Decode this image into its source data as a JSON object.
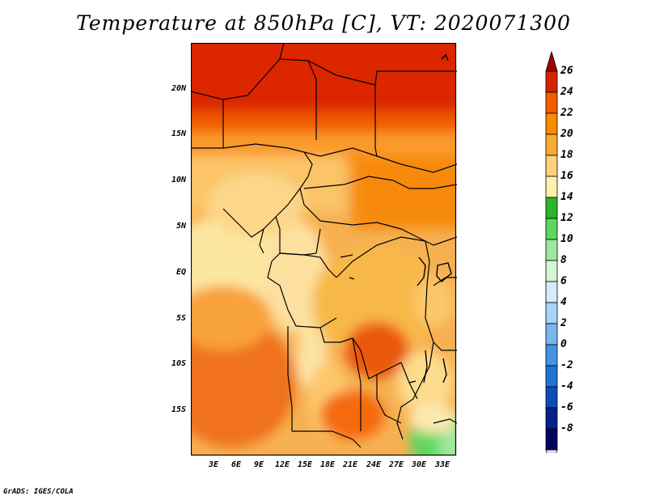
{
  "title": "Temperature at 850hPa [C], VT: 2020071300",
  "credit": "GrADS: IGES/COLA",
  "map": {
    "variable": "Temperature at 850hPa",
    "units": "C",
    "valid_time": "2020071300",
    "lat_ticks": [
      "20N",
      "15N",
      "10N",
      "5N",
      "EQ",
      "5S",
      "10S",
      "15S"
    ],
    "lon_ticks": [
      "3E",
      "6E",
      "9E",
      "12E",
      "15E",
      "18E",
      "21E",
      "24E",
      "27E",
      "30E",
      "33E"
    ]
  },
  "colorbar": {
    "levels": [
      "26",
      "24",
      "22",
      "20",
      "18",
      "16",
      "14",
      "12",
      "10",
      "8",
      "6",
      "4",
      "2",
      "0",
      "-2",
      "-4",
      "-6",
      "-8"
    ],
    "colors": [
      "#a30000",
      "#d42400",
      "#f45c00",
      "#fa8a00",
      "#fbab32",
      "#fdd27a",
      "#fff0b0",
      "#2ab52a",
      "#5fd65f",
      "#9de89d",
      "#d4f6d4",
      "#d4ecfb",
      "#a8d4f7",
      "#78b6f0",
      "#4494e6",
      "#2272d6",
      "#0d4cb8",
      "#08208a",
      "#02045e"
    ],
    "top_arrow_color": "#a30000",
    "bottom_arrow_color": "#dcdcfa"
  }
}
